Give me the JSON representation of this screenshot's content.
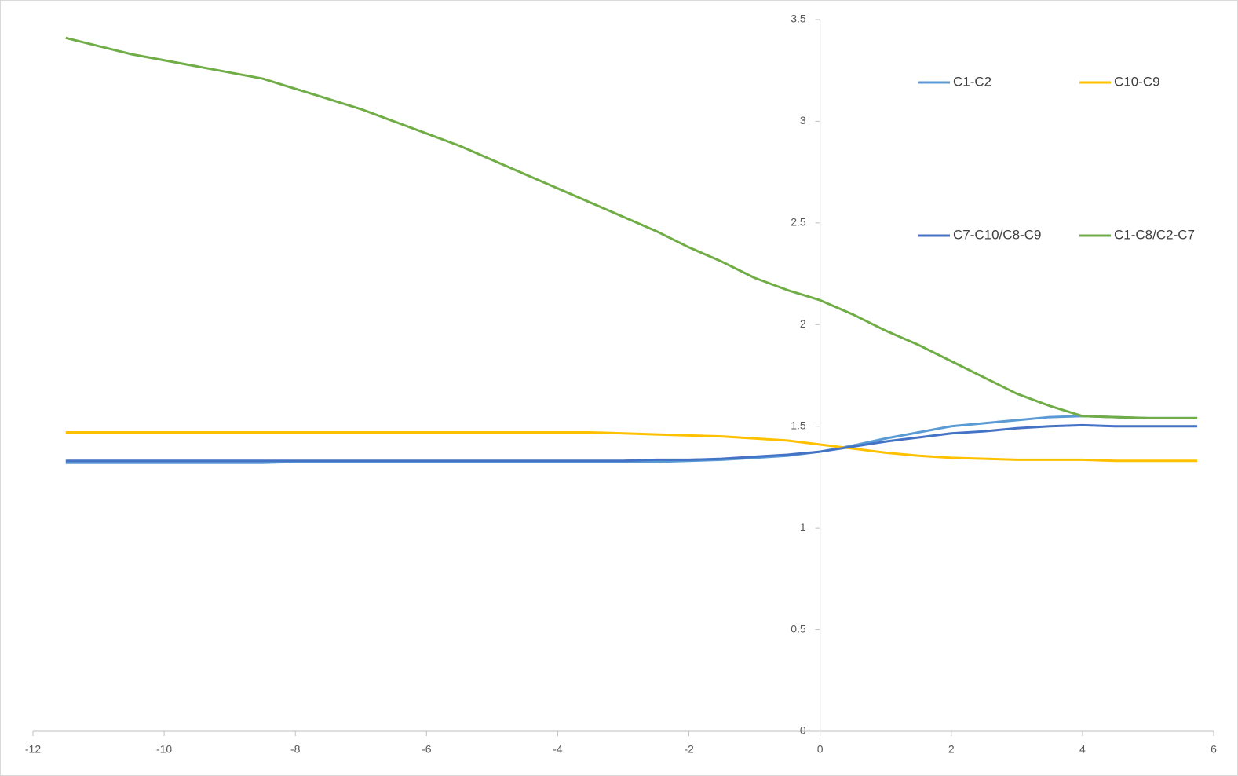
{
  "chart_data": {
    "type": "line",
    "x": [
      -11.5,
      -11,
      -10.5,
      -10,
      -9.5,
      -9,
      -8.5,
      -8,
      -7.5,
      -7,
      -6.5,
      -6,
      -5.5,
      -5,
      -4.5,
      -4,
      -3.5,
      -3,
      -2.5,
      -2,
      -1.5,
      -1,
      -0.5,
      0,
      0.5,
      1,
      1.5,
      2,
      2.5,
      3,
      3.5,
      4,
      4.5,
      5,
      5.5,
      5.75
    ],
    "series": [
      {
        "name": "C1-C2",
        "color": "#5b9bd5",
        "values": [
          1.32,
          1.32,
          1.32,
          1.32,
          1.32,
          1.32,
          1.32,
          1.325,
          1.325,
          1.325,
          1.325,
          1.325,
          1.325,
          1.325,
          1.325,
          1.325,
          1.325,
          1.325,
          1.325,
          1.33,
          1.335,
          1.345,
          1.355,
          1.375,
          1.405,
          1.44,
          1.47,
          1.5,
          1.515,
          1.53,
          1.545,
          1.55,
          1.545,
          1.54,
          1.54,
          1.54
        ]
      },
      {
        "name": "C10-C9",
        "color": "#ffc000",
        "values": [
          1.47,
          1.47,
          1.47,
          1.47,
          1.47,
          1.47,
          1.47,
          1.47,
          1.47,
          1.47,
          1.47,
          1.47,
          1.47,
          1.47,
          1.47,
          1.47,
          1.47,
          1.465,
          1.46,
          1.455,
          1.45,
          1.44,
          1.43,
          1.41,
          1.39,
          1.37,
          1.355,
          1.345,
          1.34,
          1.335,
          1.335,
          1.335,
          1.33,
          1.33,
          1.33,
          1.33
        ]
      },
      {
        "name": "C7-C10/C8-C9",
        "color": "#4472c4",
        "values": [
          1.33,
          1.33,
          1.33,
          1.33,
          1.33,
          1.33,
          1.33,
          1.33,
          1.33,
          1.33,
          1.33,
          1.33,
          1.33,
          1.33,
          1.33,
          1.33,
          1.33,
          1.33,
          1.335,
          1.335,
          1.34,
          1.35,
          1.36,
          1.375,
          1.4,
          1.425,
          1.445,
          1.465,
          1.475,
          1.49,
          1.5,
          1.505,
          1.5,
          1.5,
          1.5,
          1.5
        ]
      },
      {
        "name": "C1-C8/C2-C7",
        "color": "#70ad47",
        "values": [
          3.41,
          3.37,
          3.33,
          3.3,
          3.27,
          3.24,
          3.21,
          3.16,
          3.11,
          3.06,
          3.0,
          2.94,
          2.88,
          2.81,
          2.74,
          2.67,
          2.6,
          2.53,
          2.46,
          2.38,
          2.31,
          2.23,
          2.17,
          2.12,
          2.05,
          1.97,
          1.9,
          1.82,
          1.74,
          1.66,
          1.6,
          1.55,
          1.545,
          1.54,
          1.54,
          1.54
        ]
      }
    ],
    "xlim": [
      -12,
      6
    ],
    "xticks": [
      -12,
      -10,
      -8,
      -6,
      -4,
      -2,
      0,
      2,
      4,
      6
    ],
    "ylim": [
      0,
      3.5
    ],
    "yticks": [
      0,
      0.5,
      1,
      1.5,
      2,
      2.5,
      3,
      3.5
    ],
    "grid": false,
    "legend": "upper right"
  }
}
